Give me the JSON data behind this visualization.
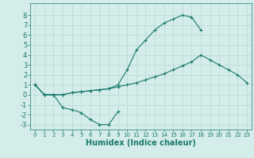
{
  "x_values": [
    0,
    1,
    2,
    3,
    4,
    5,
    6,
    7,
    8,
    9,
    10,
    11,
    12,
    13,
    14,
    15,
    16,
    17,
    18,
    19,
    20,
    21,
    22,
    23
  ],
  "line1": [
    1.0,
    0.0,
    0.0,
    0.0,
    0.2,
    0.3,
    0.4,
    0.5,
    0.6,
    0.8,
    1.0,
    1.2,
    1.5,
    1.8,
    2.1,
    2.5,
    2.9,
    3.3,
    4.0,
    3.5,
    3.0,
    2.5,
    2.0,
    1.2
  ],
  "line2_x": [
    0,
    1,
    2,
    3,
    4,
    5,
    6,
    7,
    8,
    9
  ],
  "line2_y": [
    1.0,
    0.0,
    0.0,
    -1.3,
    -1.5,
    -1.8,
    -2.5,
    -3.0,
    -3.0,
    -1.7
  ],
  "line3_x": [
    0,
    1,
    2,
    3,
    4,
    5,
    6,
    7,
    8,
    9,
    10,
    11,
    12,
    13,
    14,
    15,
    16,
    17,
    18
  ],
  "line3_y": [
    1.0,
    0.0,
    0.0,
    0.0,
    0.2,
    0.3,
    0.4,
    0.5,
    0.6,
    1.0,
    2.5,
    4.5,
    5.5,
    6.5,
    7.2,
    7.6,
    8.0,
    7.8,
    6.5
  ],
  "ylim": [
    -3.5,
    9.2
  ],
  "xlim": [
    -0.5,
    23.5
  ],
  "yticks": [
    -3,
    -2,
    -1,
    0,
    1,
    2,
    3,
    4,
    5,
    6,
    7,
    8
  ],
  "xticks": [
    0,
    1,
    2,
    3,
    4,
    5,
    6,
    7,
    8,
    9,
    10,
    11,
    12,
    13,
    14,
    15,
    16,
    17,
    18,
    19,
    20,
    21,
    22,
    23
  ],
  "line_color": "#1a7a6e",
  "bg_color": "#d4ecea",
  "grid_color": "#b8d8d4",
  "xlabel": "Humidex (Indice chaleur)",
  "xlabel_fontsize": 7,
  "marker": "+"
}
